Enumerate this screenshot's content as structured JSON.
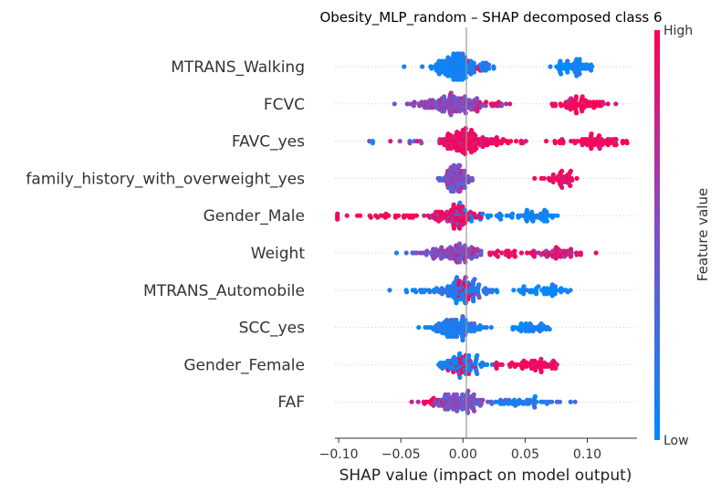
{
  "chart_data": {
    "type": "scatter",
    "title": "Obesity_MLP_random – SHAP decomposed class 6",
    "xlabel": "SHAP value (impact on model output)",
    "ylabel": "",
    "xlim": [
      -0.103,
      0.14
    ],
    "xticks": [
      -0.1,
      -0.05,
      0.0,
      0.05,
      0.1
    ],
    "xtick_labels": [
      "−0.10",
      "−0.05",
      "0.00",
      "0.05",
      "0.10"
    ],
    "grid": false,
    "colorbar": {
      "label": "Feature value",
      "high_label": "High",
      "low_label": "Low",
      "low_color": "#008afb",
      "mid_color": "#7c52c8",
      "high_color": "#ff0052"
    },
    "features": [
      {
        "name": "MTRANS_Walking",
        "clusters": [
          {
            "c": -0.007,
            "s": 0.01,
            "n": 140,
            "v": 0.05
          },
          {
            "c": 0.008,
            "s": 0.012,
            "n": 30,
            "v": 0.12
          },
          {
            "c": 0.09,
            "s": 0.008,
            "n": 60,
            "v": 0.02
          },
          {
            "c": 0.012,
            "s": 0.01,
            "n": 4,
            "v": 1.0
          }
        ]
      },
      {
        "name": "FCVC",
        "clusters": [
          {
            "c": -0.008,
            "s": 0.011,
            "n": 130,
            "v": 0.55
          },
          {
            "c": -0.04,
            "s": 0.008,
            "n": 12,
            "v": 0.5
          },
          {
            "c": 0.02,
            "s": 0.012,
            "n": 20,
            "v": 0.85
          },
          {
            "c": 0.095,
            "s": 0.01,
            "n": 70,
            "v": 0.97
          }
        ]
      },
      {
        "name": "FAVC_yes",
        "clusters": [
          {
            "c": 0.0,
            "s": 0.009,
            "n": 120,
            "v": 0.95
          },
          {
            "c": 0.028,
            "s": 0.013,
            "n": 40,
            "v": 0.95
          },
          {
            "c": -0.03,
            "s": 0.018,
            "n": 12,
            "v": 0.7
          },
          {
            "c": -0.072,
            "s": 0.01,
            "n": 3,
            "v": 0.0
          },
          {
            "c": 0.105,
            "s": 0.013,
            "n": 70,
            "v": 0.97
          }
        ]
      },
      {
        "name": "family_history_with_overweight_yes",
        "clusters": [
          {
            "c": -0.006,
            "s": 0.006,
            "n": 110,
            "v": 0.5
          },
          {
            "c": 0.078,
            "s": 0.008,
            "n": 45,
            "v": 0.97
          }
        ]
      },
      {
        "name": "Gender_Male",
        "clusters": [
          {
            "c": -0.006,
            "s": 0.009,
            "n": 100,
            "v": 0.92
          },
          {
            "c": -0.06,
            "s": 0.02,
            "n": 30,
            "v": 0.97
          },
          {
            "c": 0.01,
            "s": 0.015,
            "n": 25,
            "v": 0.05
          },
          {
            "c": 0.058,
            "s": 0.014,
            "n": 50,
            "v": 0.02
          }
        ]
      },
      {
        "name": "Weight",
        "clusters": [
          {
            "c": -0.005,
            "s": 0.012,
            "n": 110,
            "v": 0.55
          },
          {
            "c": 0.03,
            "s": 0.012,
            "n": 25,
            "v": 0.95
          },
          {
            "c": -0.045,
            "s": 0.01,
            "n": 4,
            "v": 0.3
          },
          {
            "c": 0.075,
            "s": 0.01,
            "n": 55,
            "v": 0.85
          }
        ]
      },
      {
        "name": "MTRANS_Automobile",
        "clusters": [
          {
            "c": 0.0,
            "s": 0.012,
            "n": 120,
            "v": 0.15
          },
          {
            "c": 0.002,
            "s": 0.004,
            "n": 20,
            "v": 0.97
          },
          {
            "c": -0.04,
            "s": 0.015,
            "n": 12,
            "v": 0.0
          },
          {
            "c": 0.065,
            "s": 0.012,
            "n": 50,
            "v": 0.02
          }
        ]
      },
      {
        "name": "SCC_yes",
        "clusters": [
          {
            "c": -0.006,
            "s": 0.01,
            "n": 120,
            "v": 0.1
          },
          {
            "c": 0.055,
            "s": 0.008,
            "n": 40,
            "v": 0.02
          }
        ]
      },
      {
        "name": "Gender_Female",
        "clusters": [
          {
            "c": -0.002,
            "s": 0.01,
            "n": 80,
            "v": 0.05
          },
          {
            "c": 0.0,
            "s": 0.004,
            "n": 25,
            "v": 0.9
          },
          {
            "c": 0.03,
            "s": 0.01,
            "n": 10,
            "v": 0.97
          },
          {
            "c": 0.06,
            "s": 0.009,
            "n": 50,
            "v": 0.97
          }
        ]
      },
      {
        "name": "FAF",
        "clusters": [
          {
            "c": -0.002,
            "s": 0.01,
            "n": 110,
            "v": 0.5
          },
          {
            "c": 0.05,
            "s": 0.014,
            "n": 50,
            "v": 0.15
          },
          {
            "c": -0.025,
            "s": 0.007,
            "n": 15,
            "v": 0.9
          }
        ]
      }
    ]
  }
}
